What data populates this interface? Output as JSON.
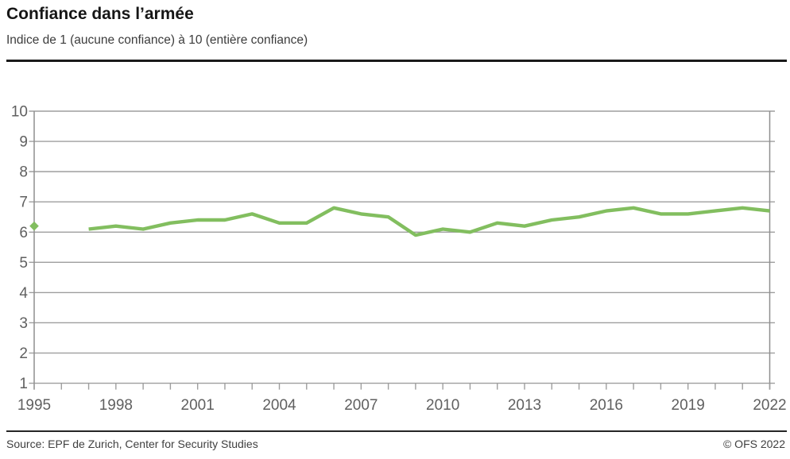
{
  "header": {
    "title": "Confiance dans l’armée",
    "subtitle": "Indice de 1 (aucune confiance) à 10 (entière confiance)"
  },
  "footer": {
    "source": "Source: EPF de Zurich, Center for Security Studies",
    "copyright": "© OFS 2022"
  },
  "colors": {
    "line": "#82BE5F",
    "grid": "#9E9E9E",
    "axis": "#8F8F8F",
    "tick_label": "#606060",
    "title": "#161616",
    "text": "#404040"
  },
  "chart_data": {
    "type": "line",
    "title": "Confiance dans l’armée",
    "subtitle": "Indice de 1 (aucune confiance) à 10 (entière confiance)",
    "xlabel": "",
    "ylabel": "",
    "xlim": [
      1995,
      2022
    ],
    "ylim": [
      1,
      10
    ],
    "grid": "horizontal",
    "legend_position": "none",
    "y_ticks": [
      10,
      9,
      8,
      7,
      6,
      5,
      4,
      3,
      2,
      1
    ],
    "x_labeled_ticks": [
      1995,
      1998,
      2001,
      2004,
      2007,
      2010,
      2013,
      2016,
      2019,
      2022
    ],
    "x_minor_tick_step_years": 1,
    "series": [
      {
        "name": "Confiance dans l’armée",
        "x": [
          1997,
          1998,
          1999,
          2000,
          2001,
          2002,
          2003,
          2004,
          2005,
          2006,
          2007,
          2008,
          2009,
          2010,
          2011,
          2012,
          2013,
          2014,
          2015,
          2016,
          2017,
          2018,
          2019,
          2020,
          2021,
          2022
        ],
        "y": [
          6.1,
          6.2,
          6.1,
          6.3,
          6.4,
          6.4,
          6.6,
          6.3,
          6.3,
          6.8,
          6.6,
          6.5,
          5.9,
          6.1,
          6.0,
          6.3,
          6.2,
          6.4,
          6.5,
          6.7,
          6.8,
          6.6,
          6.6,
          6.7,
          6.8,
          6.7
        ]
      }
    ],
    "isolated_points": [
      {
        "x": 1995,
        "y": 6.2,
        "marker": "diamond"
      }
    ]
  }
}
